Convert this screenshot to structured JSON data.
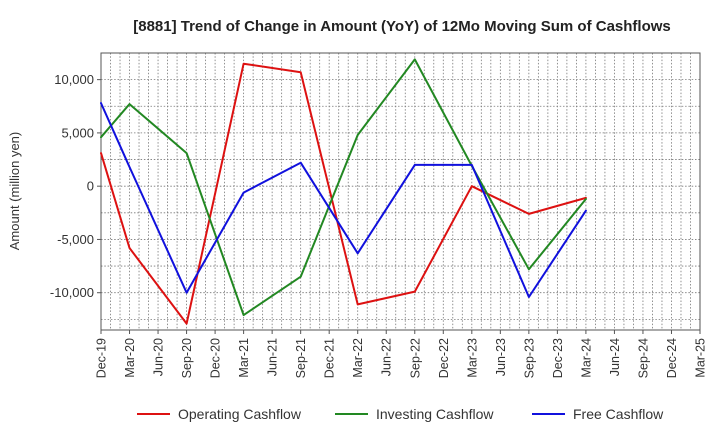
{
  "chart_data": {
    "type": "line",
    "title": "[8881]  Trend of Change in Amount (YoY) of 12Mo Moving Sum of Cashflows",
    "xlabel": "",
    "ylabel": "Amount (million yen)",
    "ylim": [
      -13500,
      12500
    ],
    "yticks": [
      10000,
      5000,
      0,
      -5000,
      -10000
    ],
    "ytick_labels": [
      "10,000",
      "5,000",
      "0",
      "-5,000",
      "-10,000"
    ],
    "grid": true,
    "legend_position": "bottom-center",
    "categories": [
      "Dec-19",
      "Mar-20",
      "Jun-20",
      "Sep-20",
      "Dec-20",
      "Mar-21",
      "Jun-21",
      "Sep-21",
      "Dec-21",
      "Mar-22",
      "Jun-22",
      "Sep-22",
      "Dec-22",
      "Mar-23",
      "Jun-23",
      "Sep-23",
      "Dec-23",
      "Mar-24",
      "Jun-24",
      "Sep-24",
      "Dec-24",
      "Mar-25"
    ],
    "series": [
      {
        "name": "Operating Cashflow",
        "color": "#dd1111",
        "values": [
          3100,
          -5800,
          null,
          -12900,
          null,
          11500,
          null,
          10700,
          null,
          -11100,
          null,
          -9900,
          null,
          0,
          null,
          -2600,
          null,
          -1100,
          null,
          null,
          null,
          null
        ]
      },
      {
        "name": "Investing Cashflow",
        "color": "#228822",
        "values": [
          4600,
          7700,
          null,
          3100,
          null,
          -12100,
          null,
          -8500,
          null,
          4800,
          null,
          11900,
          null,
          1900,
          null,
          -7800,
          null,
          -1200,
          null,
          null,
          null,
          null
        ]
      },
      {
        "name": "Free Cashflow",
        "color": "#1111dd",
        "values": [
          7800,
          1800,
          null,
          -10000,
          null,
          -600,
          null,
          2200,
          null,
          -6300,
          null,
          2000,
          null,
          2000,
          null,
          -10400,
          null,
          -2300,
          null,
          null,
          null,
          null
        ]
      }
    ]
  }
}
